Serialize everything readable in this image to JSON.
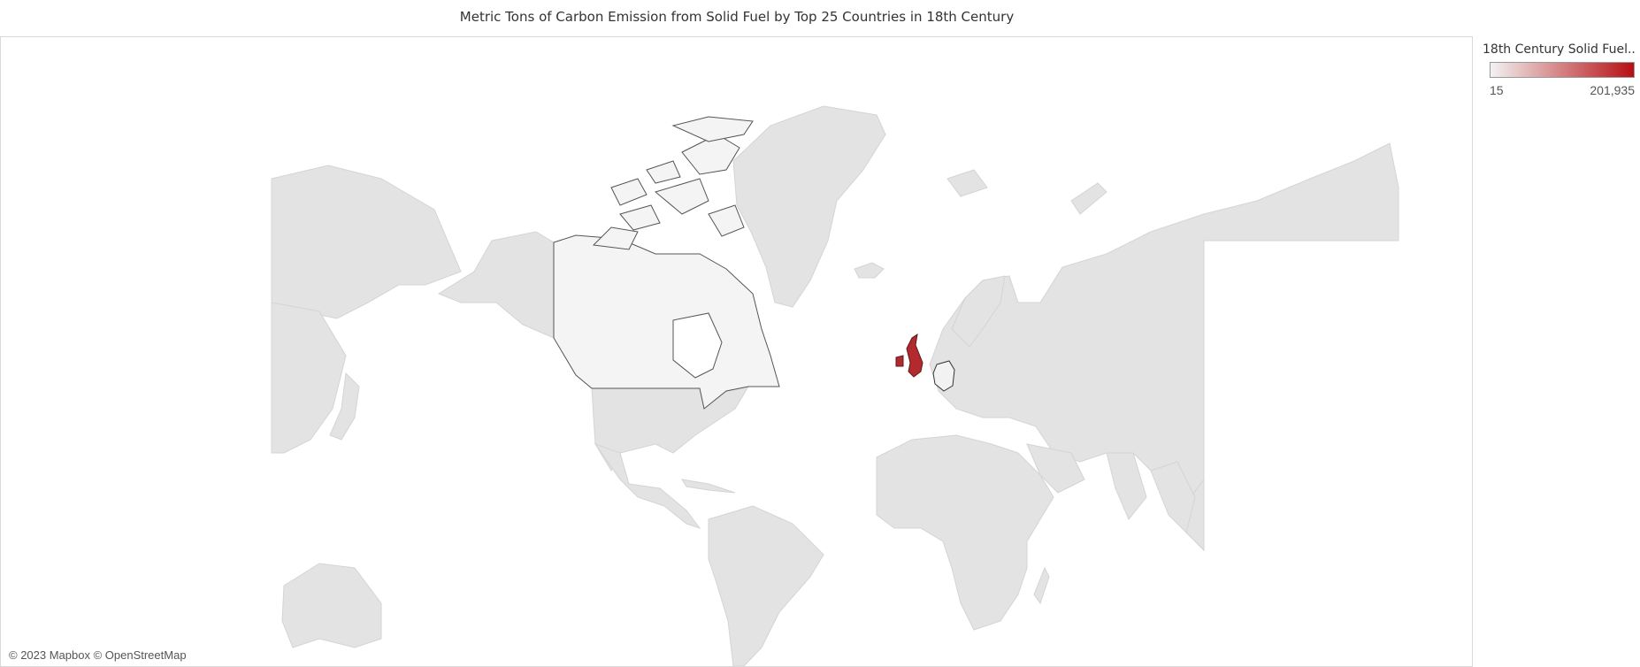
{
  "title": "Metric Tons of Carbon Emission from Solid Fuel by Top 25 Countries in 18th Century",
  "legend": {
    "title": "18th Century Solid Fuel..",
    "min_label": "15",
    "max_label": "201,935",
    "color_low": "#f2f2f2",
    "color_high": "#b60f12"
  },
  "attribution": "© 2023 Mapbox © OpenStreetMap",
  "map_data": {
    "highlighted_countries": [
      {
        "name": "United Kingdom",
        "color": "#b22a2e"
      },
      {
        "name": "Germany",
        "color": "#f2f2f2"
      },
      {
        "name": "Canada",
        "color": "#f4f4f4"
      }
    ],
    "land_color": "#e3e3e3",
    "ocean_color": "#ffffff"
  }
}
